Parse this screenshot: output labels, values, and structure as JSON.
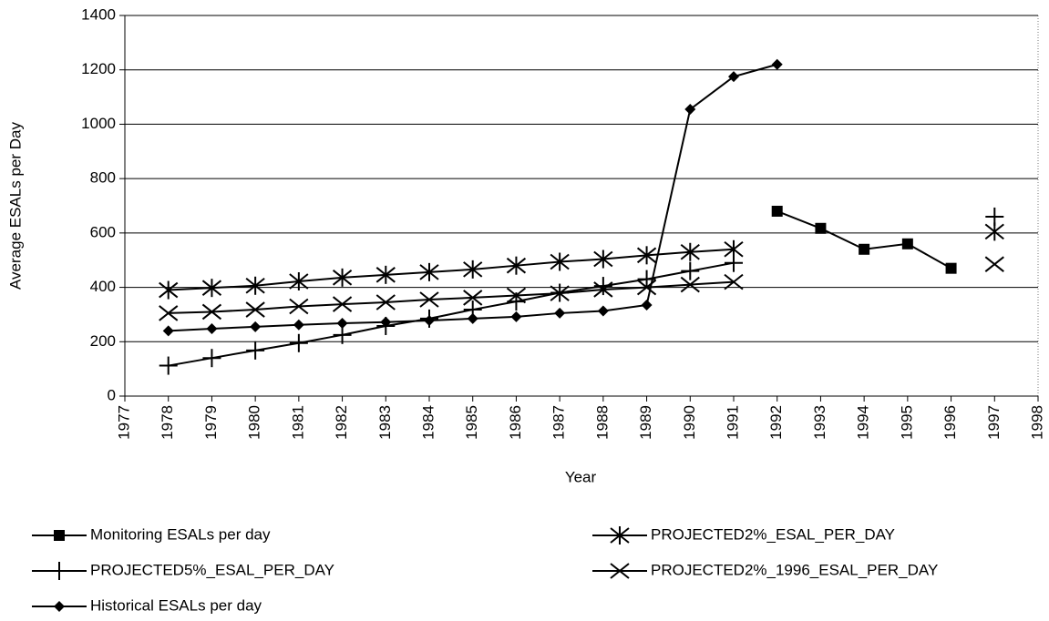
{
  "chart_data": {
    "type": "line",
    "x_label": "Year",
    "y_label": "Average ESALs per Day",
    "x": [
      1978,
      1979,
      1980,
      1981,
      1982,
      1983,
      1984,
      1985,
      1986,
      1987,
      1988,
      1989,
      1990,
      1991,
      1992,
      1993,
      1994,
      1995,
      1996,
      1997
    ],
    "series": [
      {
        "name": "Monitoring ESALs per day",
        "color": "#000000",
        "marker": "square",
        "values": [
          null,
          null,
          null,
          null,
          null,
          null,
          null,
          null,
          null,
          null,
          null,
          null,
          null,
          null,
          680,
          617,
          540,
          560,
          470,
          null
        ]
      },
      {
        "name": "PROJECTED2%_ESAL_PER_DAY",
        "color": "#000000",
        "marker": "asterisk",
        "values": [
          390,
          398,
          406,
          422,
          436,
          446,
          456,
          466,
          480,
          494,
          504,
          518,
          530,
          540,
          null,
          null,
          null,
          null,
          null,
          605
        ]
      },
      {
        "name": "PROJECTED5%_ESAL_PER_DAY",
        "color": "#000000",
        "marker": "plus",
        "values": [
          112,
          140,
          168,
          195,
          225,
          258,
          285,
          318,
          348,
          380,
          405,
          430,
          460,
          490,
          null,
          null,
          null,
          null,
          null,
          660
        ]
      },
      {
        "name": "PROJECTED2%_1996_ESAL_PER_DAY",
        "color": "#000000",
        "marker": "cross",
        "values": [
          305,
          310,
          318,
          330,
          338,
          345,
          355,
          362,
          370,
          378,
          392,
          400,
          410,
          420,
          null,
          null,
          null,
          null,
          null,
          485
        ]
      },
      {
        "name": "Historical ESALs per day",
        "color": "#000000",
        "marker": "diamond",
        "values": [
          240,
          248,
          255,
          262,
          268,
          272,
          278,
          285,
          292,
          305,
          313,
          335,
          1055,
          1175,
          1220,
          null,
          null,
          null,
          null,
          null
        ]
      }
    ],
    "xlim": [
      1977,
      1998
    ],
    "xticks": [
      1977,
      1978,
      1979,
      1980,
      1981,
      1982,
      1983,
      1984,
      1985,
      1986,
      1987,
      1988,
      1989,
      1990,
      1991,
      1992,
      1993,
      1994,
      1995,
      1996,
      1997,
      1998
    ],
    "ylim": [
      0,
      1400
    ],
    "yticks": [
      0,
      200,
      400,
      600,
      800,
      1000,
      1200,
      1400
    ],
    "grid": true,
    "legend": "bottom"
  }
}
